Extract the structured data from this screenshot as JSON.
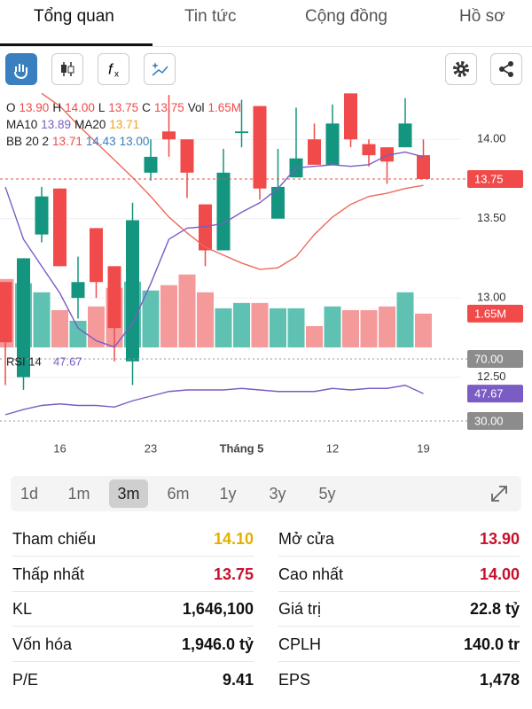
{
  "tabs": [
    "Tổng quan",
    "Tin tức",
    "Cộng đồng",
    "Hồ sơ"
  ],
  "chart_data": {
    "type": "candlestick",
    "legend": [
      [
        {
          "text": "O",
          "color": "#222"
        },
        {
          "text": "13.90",
          "color": "#f04a4a"
        },
        {
          "text": "H",
          "color": "#222"
        },
        {
          "text": "14.00",
          "color": "#f04a4a"
        },
        {
          "text": "L",
          "color": "#222"
        },
        {
          "text": "13.75",
          "color": "#f04a4a"
        },
        {
          "text": "C",
          "color": "#222"
        },
        {
          "text": "13.75",
          "color": "#f04a4a"
        },
        {
          "text": "Vol",
          "color": "#222"
        },
        {
          "text": "1.65M",
          "color": "#f04a4a"
        }
      ],
      [
        {
          "text": "MA10",
          "color": "#222"
        },
        {
          "text": "13.89",
          "color": "#7b5cc4"
        },
        {
          "text": "MA20",
          "color": "#222"
        },
        {
          "text": "13.71",
          "color": "#f0a020"
        }
      ],
      [
        {
          "text": "BB 20 2",
          "color": "#222"
        },
        {
          "text": "13.71",
          "color": "#f04a4a"
        },
        {
          "text": "14.43",
          "color": "#3a7fc0"
        },
        {
          "text": "13.00",
          "color": "#3a7fc0"
        }
      ]
    ],
    "open": [
      13.1,
      12.5,
      13.4,
      13.69,
      13.0,
      13.44,
      13.2,
      12.6,
      13.79,
      14.05,
      14.0,
      13.59,
      13.3,
      14.04,
      14.21,
      13.5,
      13.76,
      14.0,
      13.84,
      14.29,
      13.97,
      13.95,
      13.95,
      13.9
    ],
    "high": [
      13.1,
      13.25,
      13.7,
      13.69,
      13.26,
      13.44,
      13.2,
      13.6,
      14.0,
      14.28,
      14.0,
      13.59,
      13.94,
      14.25,
      14.21,
      13.94,
      14.2,
      14.1,
      14.22,
      14.29,
      14.0,
      13.95,
      14.26,
      14.0
    ],
    "low": [
      12.45,
      12.42,
      13.35,
      13.2,
      12.87,
      13.0,
      12.6,
      12.45,
      13.74,
      13.89,
      13.63,
      13.2,
      13.3,
      13.95,
      13.62,
      13.5,
      13.76,
      13.84,
      13.84,
      13.95,
      13.83,
      13.72,
      13.95,
      13.75
    ],
    "close": [
      12.72,
      13.25,
      13.64,
      13.2,
      13.1,
      13.1,
      12.81,
      13.49,
      13.89,
      14.0,
      13.79,
      13.3,
      13.79,
      14.05,
      13.69,
      13.7,
      13.88,
      13.84,
      14.1,
      14.0,
      13.9,
      13.86,
      14.1,
      13.75
    ],
    "up_color": "#14957f",
    "down_color": "#f04a4a",
    "vol_up_color": "#5fc1b2",
    "vol_down_color": "#f59a9a",
    "volume": [
      3.34,
      3.13,
      2.69,
      1.82,
      1.3,
      2.0,
      2.91,
      3.21,
      2.78,
      3.04,
      3.56,
      2.69,
      1.91,
      2.17,
      2.17,
      1.91,
      1.91,
      1.04,
      2.0,
      1.82,
      1.82,
      2.0,
      2.69,
      1.65
    ],
    "vlim": [
      0,
      4.5
    ],
    "series": [
      {
        "name": "MA10",
        "color": "#7b5cc4",
        "values": [
          13.7,
          13.37,
          13.2,
          13.03,
          12.81,
          12.73,
          12.69,
          12.84,
          13.09,
          13.37,
          13.44,
          13.45,
          13.47,
          13.54,
          13.6,
          13.69,
          13.82,
          13.83,
          13.84,
          13.83,
          13.84,
          13.9,
          13.92,
          13.89
        ]
      },
      {
        "name": "MA20",
        "color": "#ec6a5a",
        "values": [
          null,
          null,
          14.29,
          14.21,
          14.09,
          13.98,
          13.87,
          13.76,
          13.64,
          13.51,
          13.41,
          13.32,
          13.27,
          13.22,
          13.18,
          13.19,
          13.26,
          13.4,
          13.51,
          13.59,
          13.64,
          13.66,
          13.69,
          13.71
        ]
      }
    ],
    "ylim": [
      12.14,
      14.32
    ],
    "yticks": [
      {
        "value": 14,
        "label": "14.00"
      },
      {
        "value": 13.5,
        "label": "13.50"
      },
      {
        "value": 13,
        "label": "13.00"
      },
      {
        "value": 12.5,
        "label": "12.50"
      }
    ],
    "last_price": {
      "value": 13.75,
      "label": "13.75"
    },
    "last_volume": {
      "value": 1.65,
      "label": "1.65M"
    },
    "xticks": [
      {
        "value": 3,
        "label": "16"
      },
      {
        "value": 8,
        "label": "23"
      },
      {
        "value": 13,
        "label": "Tháng 5"
      },
      {
        "value": 18,
        "label": "12"
      },
      {
        "value": 23,
        "label": "19"
      }
    ],
    "rsi": {
      "name": "RSI 14",
      "color": "#7b5cc4",
      "rlim": [
        0,
        100
      ],
      "levels": [
        {
          "value": 70,
          "label": "70.00"
        },
        {
          "value": 30,
          "label": "30.00"
        }
      ],
      "last": {
        "value": 47.67,
        "label": "47.67"
      },
      "values": [
        34,
        37.4,
        40,
        41,
        40,
        40,
        39,
        43,
        46,
        49,
        50,
        50,
        50,
        51,
        50,
        49,
        49,
        49,
        51,
        50,
        51,
        51,
        53,
        47.67
      ]
    }
  },
  "ranges": [
    "1d",
    "1m",
    "3m",
    "6m",
    "1y",
    "3y",
    "5y"
  ],
  "selected_range": 2,
  "stats": [
    [
      {
        "label": "Tham chiếu",
        "value": "14.10",
        "color": "#e3b000"
      },
      {
        "label": "Mở cửa",
        "value": "13.90",
        "color": "#c8102e"
      }
    ],
    [
      {
        "label": "Thấp nhất",
        "value": "13.75",
        "color": "#c8102e"
      },
      {
        "label": "Cao nhất",
        "value": "14.00",
        "color": "#c8102e"
      }
    ],
    [
      {
        "label": "KL",
        "value": "1,646,100",
        "color": "#111"
      },
      {
        "label": "Giá trị",
        "value": "22.8 tỷ",
        "color": "#111"
      }
    ],
    [
      {
        "label": "Vốn hóa",
        "value": "1,946.0 tỷ",
        "color": "#111"
      },
      {
        "label": "CPLH",
        "value": "140.0 tr",
        "color": "#111"
      }
    ],
    [
      {
        "label": "P/E",
        "value": "9.41",
        "color": "#111"
      },
      {
        "label": "EPS",
        "value": "1,478",
        "color": "#111"
      }
    ]
  ]
}
